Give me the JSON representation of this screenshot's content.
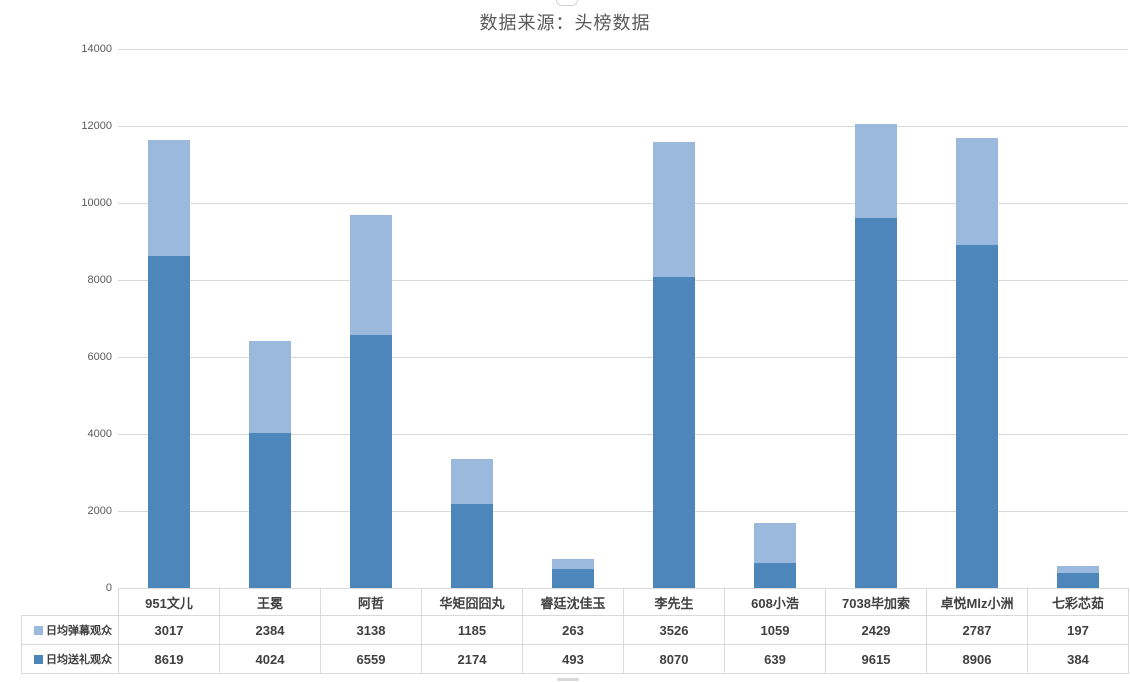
{
  "chart_data": {
    "type": "bar",
    "stacked": true,
    "title": "数据来源：头榜数据",
    "categories": [
      "951文儿",
      "王冕",
      "阿哲",
      "华矩囧囧丸",
      "睿廷沈佳玉",
      "李先生",
      "608小浩",
      "7038毕加索",
      "卓悦Mlz小洲",
      "七彩芯茹"
    ],
    "series": [
      {
        "name": "日均弹幕观众",
        "color": "#9BB9DC",
        "values": [
          3017,
          2384,
          3138,
          1185,
          263,
          3526,
          1059,
          2429,
          2787,
          197
        ]
      },
      {
        "name": "日均送礼观众",
        "color": "#4D86BB",
        "values": [
          8619,
          4024,
          6559,
          2174,
          493,
          8070,
          639,
          9615,
          8906,
          384
        ]
      }
    ],
    "stack_order_bottom_first": [
      "日均送礼观众",
      "日均弹幕观众"
    ],
    "xlabel": "",
    "ylabel": "",
    "ylim": [
      0,
      14000
    ],
    "yticks": [
      0,
      2000,
      4000,
      6000,
      8000,
      10000,
      12000,
      14000
    ],
    "grid": true,
    "legend_position": "data-table-row-headers",
    "data_table_shown": true
  },
  "colors": {
    "gridline": "#d9d9d9",
    "table_border": "#d9d9d9",
    "axis_text": "#595959",
    "title_text": "#595959",
    "table_text": "#404040",
    "background": "#ffffff"
  }
}
